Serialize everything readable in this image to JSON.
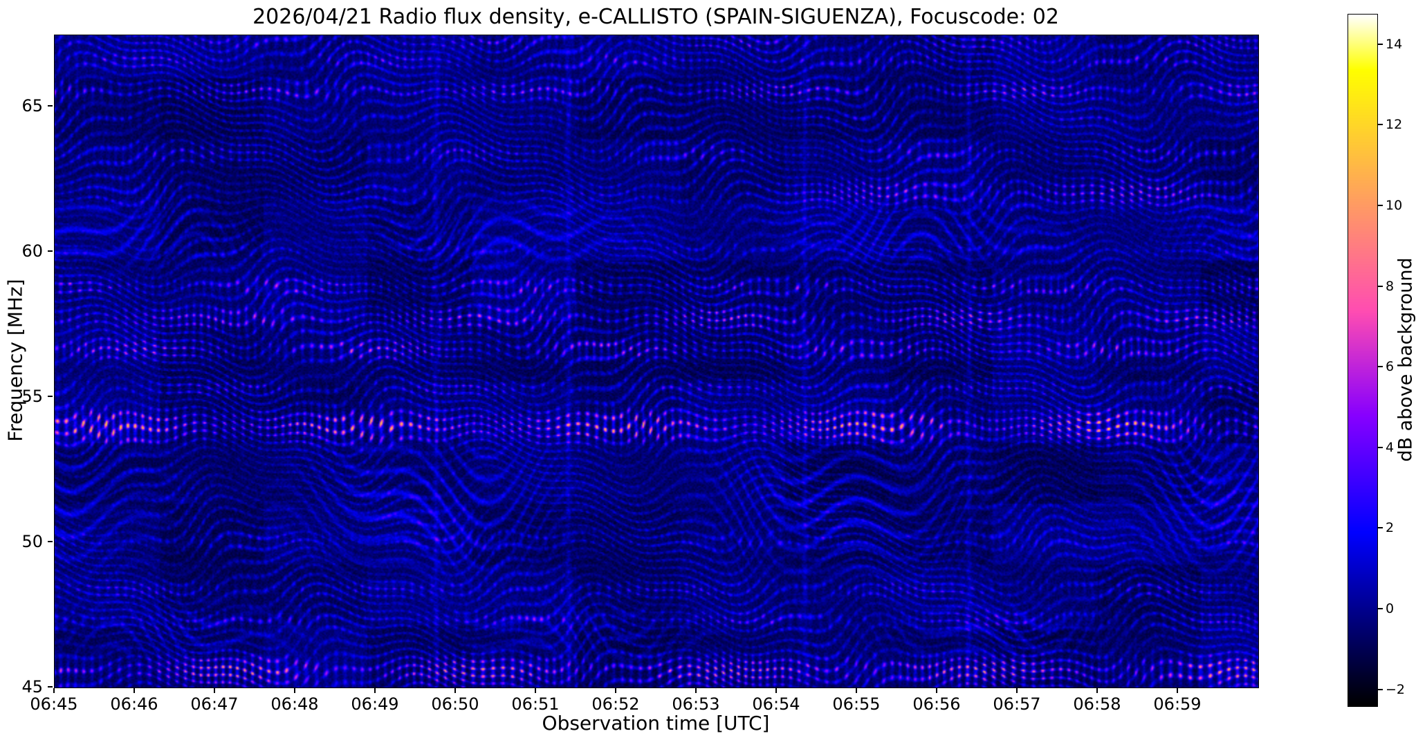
{
  "chart_data": {
    "type": "heatmap",
    "title": "2026/04/21  Radio flux density, e-CALLISTO (SPAIN-SIGUENZA), Focuscode: 02",
    "xlabel": "Observation time [UTC]",
    "ylabel": "Frequency [MHz]",
    "meta": {
      "date": "2026/04/21",
      "instrument": "e-CALLISTO",
      "station": "SPAIN-SIGUENZA",
      "focuscode": "02"
    },
    "x_ticks": [
      "06:45",
      "06:46",
      "06:47",
      "06:48",
      "06:49",
      "06:50",
      "06:51",
      "06:52",
      "06:53",
      "06:54",
      "06:55",
      "06:56",
      "06:57",
      "06:58",
      "06:59"
    ],
    "x_range": [
      "06:45",
      "07:00"
    ],
    "x_range_minutes": [
      0,
      15
    ],
    "y_ticks": [
      45,
      50,
      55,
      60,
      65
    ],
    "y_tick_labels": [
      "45",
      "50",
      "55",
      "60",
      "65"
    ],
    "y_range_mhz": [
      45,
      67.45
    ],
    "grid": false,
    "legend": "none",
    "colorbar": {
      "label": "dB above background",
      "ticks": [
        -2,
        0,
        2,
        4,
        6,
        8,
        10,
        12,
        14
      ],
      "tick_labels": [
        "−2",
        "0",
        "2",
        "4",
        "6",
        "8",
        "10",
        "12",
        "14"
      ],
      "vmin": -2.4,
      "vmax": 14.75,
      "colormap": "gnuplot2",
      "position": "right"
    },
    "description": "Radio spectrogram dominated by quasi-periodic interference fringes (no solar burst). Bright beaded emission bands near 45.5, 54.0, 56.5-59, 62 and 65.5 MHz over a dark blue fringed background; smooth curved blue fringes around 49-53 MHz and 60-61 MHz; faint vertical streaks near 06:49.7, 06:51.4, 06:54.3 and 06:56.4.",
    "render_params": {
      "noise_seed": 7,
      "bands": [
        {
          "f": 45.55,
          "w": 0.5,
          "a": 12.0,
          "p": 0.3
        },
        {
          "f": 47.3,
          "w": 0.33,
          "a": 4.5,
          "p": 1.4
        },
        {
          "f": 48.35,
          "w": 0.3,
          "a": 4.0,
          "p": 2.2
        },
        {
          "f": 50.05,
          "w": 0.3,
          "a": 3.0,
          "p": 3.1
        },
        {
          "f": 54.0,
          "w": 0.55,
          "a": 13.0,
          "p": 4.0
        },
        {
          "f": 55.3,
          "w": 0.3,
          "a": 4.5,
          "p": 4.9
        },
        {
          "f": 56.65,
          "w": 0.38,
          "a": 8.0,
          "p": 5.7
        },
        {
          "f": 57.7,
          "w": 0.45,
          "a": 8.0,
          "p": 0.9
        },
        {
          "f": 58.8,
          "w": 0.3,
          "a": 7.0,
          "p": 1.9
        },
        {
          "f": 60.05,
          "w": 0.25,
          "a": 2.5,
          "p": 2.6
        },
        {
          "f": 62.05,
          "w": 0.5,
          "a": 8.0,
          "p": 3.4,
          "g0": 8.0,
          "g1": 10.5
        },
        {
          "f": 63.4,
          "w": 0.4,
          "a": 4.5,
          "p": 4.4
        },
        {
          "f": 64.6,
          "w": 0.3,
          "a": 2.5,
          "p": 5.2
        },
        {
          "f": 65.55,
          "w": 0.35,
          "a": 7.0,
          "p": 0.2
        },
        {
          "f": 66.6,
          "w": 0.3,
          "a": 5.0,
          "p": 1.1
        },
        {
          "f": 67.2,
          "w": 0.3,
          "a": 5.0,
          "p": 2.0
        }
      ],
      "waves": [
        {
          "f": 51.3,
          "w": 2.2,
          "a": 2.6,
          "p": 0.7
        },
        {
          "f": 60.6,
          "w": 1.1,
          "a": 2.2,
          "p": 2.4
        },
        {
          "f": 46.9,
          "w": 1.0,
          "a": 1.6,
          "p": 4.1
        }
      ],
      "streaks_min": [
        4.75,
        6.4,
        9.35,
        11.4
      ]
    }
  }
}
